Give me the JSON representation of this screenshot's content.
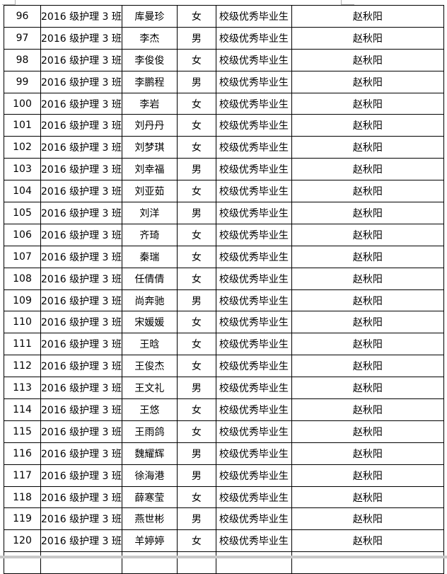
{
  "table": {
    "class_name": "2016 级护理 3 班",
    "award": "校级优秀毕业生",
    "teacher": "赵秋阳",
    "rows": [
      {
        "no": "96",
        "name": "库曼珍",
        "gender": "女"
      },
      {
        "no": "97",
        "name": "李杰",
        "gender": "男"
      },
      {
        "no": "98",
        "name": "李俊俊",
        "gender": "女"
      },
      {
        "no": "99",
        "name": "李鹏程",
        "gender": "男"
      },
      {
        "no": "100",
        "name": "李岩",
        "gender": "女"
      },
      {
        "no": "101",
        "name": "刘丹丹",
        "gender": "女"
      },
      {
        "no": "102",
        "name": "刘梦琪",
        "gender": "女"
      },
      {
        "no": "103",
        "name": "刘幸福",
        "gender": "男"
      },
      {
        "no": "104",
        "name": "刘亚茹",
        "gender": "女"
      },
      {
        "no": "105",
        "name": "刘洋",
        "gender": "男"
      },
      {
        "no": "106",
        "name": "齐琦",
        "gender": "女"
      },
      {
        "no": "107",
        "name": "秦瑞",
        "gender": "女"
      },
      {
        "no": "108",
        "name": "任倩倩",
        "gender": "女"
      },
      {
        "no": "109",
        "name": "尚奔驰",
        "gender": "男"
      },
      {
        "no": "110",
        "name": "宋媛媛",
        "gender": "女"
      },
      {
        "no": "111",
        "name": "王晗",
        "gender": "女"
      },
      {
        "no": "112",
        "name": "王俊杰",
        "gender": "女"
      },
      {
        "no": "113",
        "name": "王文礼",
        "gender": "男"
      },
      {
        "no": "114",
        "name": "王悠",
        "gender": "女"
      },
      {
        "no": "115",
        "name": "王雨鸽",
        "gender": "女"
      },
      {
        "no": "116",
        "name": "魏耀辉",
        "gender": "男"
      },
      {
        "no": "117",
        "name": "徐海港",
        "gender": "男"
      },
      {
        "no": "118",
        "name": "薛寒莹",
        "gender": "女"
      },
      {
        "no": "119",
        "name": "燕世彬",
        "gender": "男"
      },
      {
        "no": "120",
        "name": "羊婷婷",
        "gender": "女"
      }
    ]
  }
}
